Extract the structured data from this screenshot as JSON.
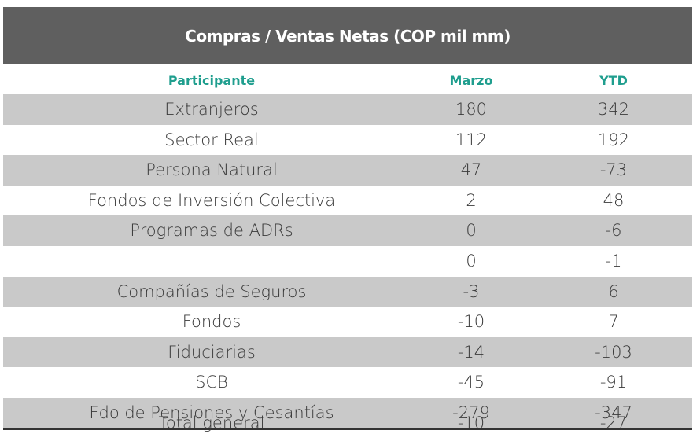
{
  "title": "Compras / Ventas Netas (COP mil mm)",
  "headers": {
    "participant": "Participante",
    "month": "Marzo",
    "ytd": "YTD"
  },
  "rows": [
    {
      "participant": "Extranjeros",
      "month": "180",
      "ytd": "342"
    },
    {
      "participant": "Sector Real",
      "month": "112",
      "ytd": "192"
    },
    {
      "participant": "Persona Natural",
      "month": "47",
      "ytd": "-73"
    },
    {
      "participant": "Fondos de Inversión Colectiva",
      "month": "2",
      "ytd": "48"
    },
    {
      "participant": "Programas de ADRs",
      "month": "0",
      "ytd": "-6"
    },
    {
      "participant": "",
      "month": "0",
      "ytd": "-1"
    },
    {
      "participant": "Compañías de Seguros",
      "month": "-3",
      "ytd": "6"
    },
    {
      "participant": "Fondos",
      "month": "-10",
      "ytd": "7"
    },
    {
      "participant": "Fiduciarias",
      "month": "-14",
      "ytd": "-103"
    },
    {
      "participant": "SCB",
      "month": "-45",
      "ytd": "-91"
    },
    {
      "participant": "Fdo de Pensiones y Cesantías",
      "month": "-279",
      "ytd": "-347"
    }
  ],
  "total": {
    "participant": "Total general",
    "month": "-10",
    "ytd": "-27"
  },
  "colors": {
    "title_bg": "#5f5f5f",
    "header_text": "#1f9e8e",
    "shade": "#c9c9c9"
  }
}
